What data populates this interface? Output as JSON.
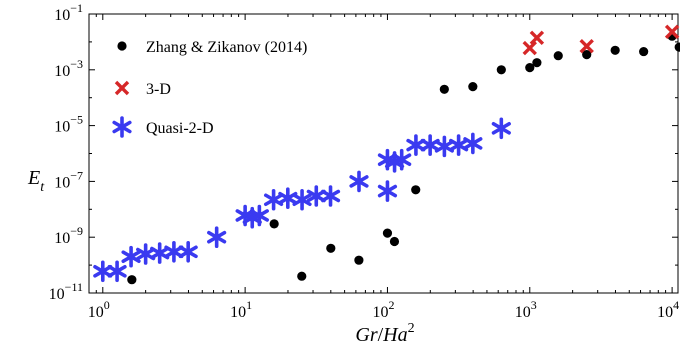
{
  "chart_data": {
    "type": "scatter",
    "title": "",
    "xlabel": {
      "gr": "Gr",
      "ha": "Ha",
      "exp": "2"
    },
    "ylabel": {
      "base": "E",
      "sub": "t"
    },
    "xscale": "log",
    "yscale": "log",
    "xlim": [
      0.8,
      11000
    ],
    "ylim": [
      1e-11,
      0.1
    ],
    "grid": false,
    "legend_position": "top-left",
    "xticks": [
      {
        "value": 1,
        "base": "10",
        "exp": "0"
      },
      {
        "value": 10,
        "base": "10",
        "exp": "1"
      },
      {
        "value": 100,
        "base": "10",
        "exp": "2"
      },
      {
        "value": 1000,
        "base": "10",
        "exp": "3"
      },
      {
        "value": 10000,
        "base": "10",
        "exp": "4"
      }
    ],
    "yticks": [
      {
        "value": 1e-11,
        "base": "10",
        "exp": "−11"
      },
      {
        "value": 1e-09,
        "base": "10",
        "exp": "−9"
      },
      {
        "value": 1e-07,
        "base": "10",
        "exp": "−7"
      },
      {
        "value": 1e-05,
        "base": "10",
        "exp": "−5"
      },
      {
        "value": 0.001,
        "base": "10",
        "exp": "−3"
      },
      {
        "value": 0.1,
        "base": "10",
        "exp": "−1"
      }
    ],
    "series": [
      {
        "name": "Zhang & Zikanov (2014)",
        "marker": "circle",
        "color": "#000000",
        "points": [
          [
            1.6,
            3e-11
          ],
          [
            16,
            3e-09
          ],
          [
            25,
            4e-11
          ],
          [
            40,
            4e-10
          ],
          [
            63,
            1.5e-10
          ],
          [
            100,
            1.4e-09
          ],
          [
            112,
            7e-10
          ],
          [
            158,
            5e-08
          ],
          [
            251,
            0.0002
          ],
          [
            398,
            0.00025
          ],
          [
            631,
            0.001
          ],
          [
            1000,
            0.0012
          ],
          [
            1122,
            0.0018
          ],
          [
            1585,
            0.0032
          ],
          [
            2512,
            0.0035
          ],
          [
            3981,
            0.005
          ],
          [
            6310,
            0.0045
          ],
          [
            10000,
            0.016
          ],
          [
            11220,
            0.0065
          ]
        ]
      },
      {
        "name": "3-D",
        "marker": "x",
        "color": "#d62728",
        "points": [
          [
            1000,
            0.006
          ],
          [
            1122,
            0.014
          ],
          [
            2512,
            0.007
          ],
          [
            10000,
            0.023
          ]
        ]
      },
      {
        "name": "Quasi-2-D",
        "marker": "asterisk",
        "color": "#3a3af0",
        "points": [
          [
            1,
            6e-11
          ],
          [
            1.26,
            6e-11
          ],
          [
            1.58,
            2e-10
          ],
          [
            2,
            2.5e-10
          ],
          [
            2.51,
            2.7e-10
          ],
          [
            3.16,
            3e-10
          ],
          [
            3.98,
            3e-10
          ],
          [
            6.31,
            1e-09
          ],
          [
            10,
            6e-09
          ],
          [
            11.22,
            5e-09
          ],
          [
            12.59,
            6e-09
          ],
          [
            15.85,
            2.2e-08
          ],
          [
            19.95,
            2.5e-08
          ],
          [
            25.12,
            2.2e-08
          ],
          [
            31.62,
            3e-08
          ],
          [
            39.81,
            3e-08
          ],
          [
            63.1,
            1e-07
          ],
          [
            100,
            4.5e-08
          ],
          [
            100,
            6e-07
          ],
          [
            112.2,
            5e-07
          ],
          [
            125.9,
            6e-07
          ],
          [
            158.5,
            2e-06
          ],
          [
            199.5,
            2e-06
          ],
          [
            251.2,
            1.8e-06
          ],
          [
            316.2,
            2e-06
          ],
          [
            398.1,
            2.3e-06
          ],
          [
            631,
            8e-06
          ]
        ]
      }
    ]
  }
}
